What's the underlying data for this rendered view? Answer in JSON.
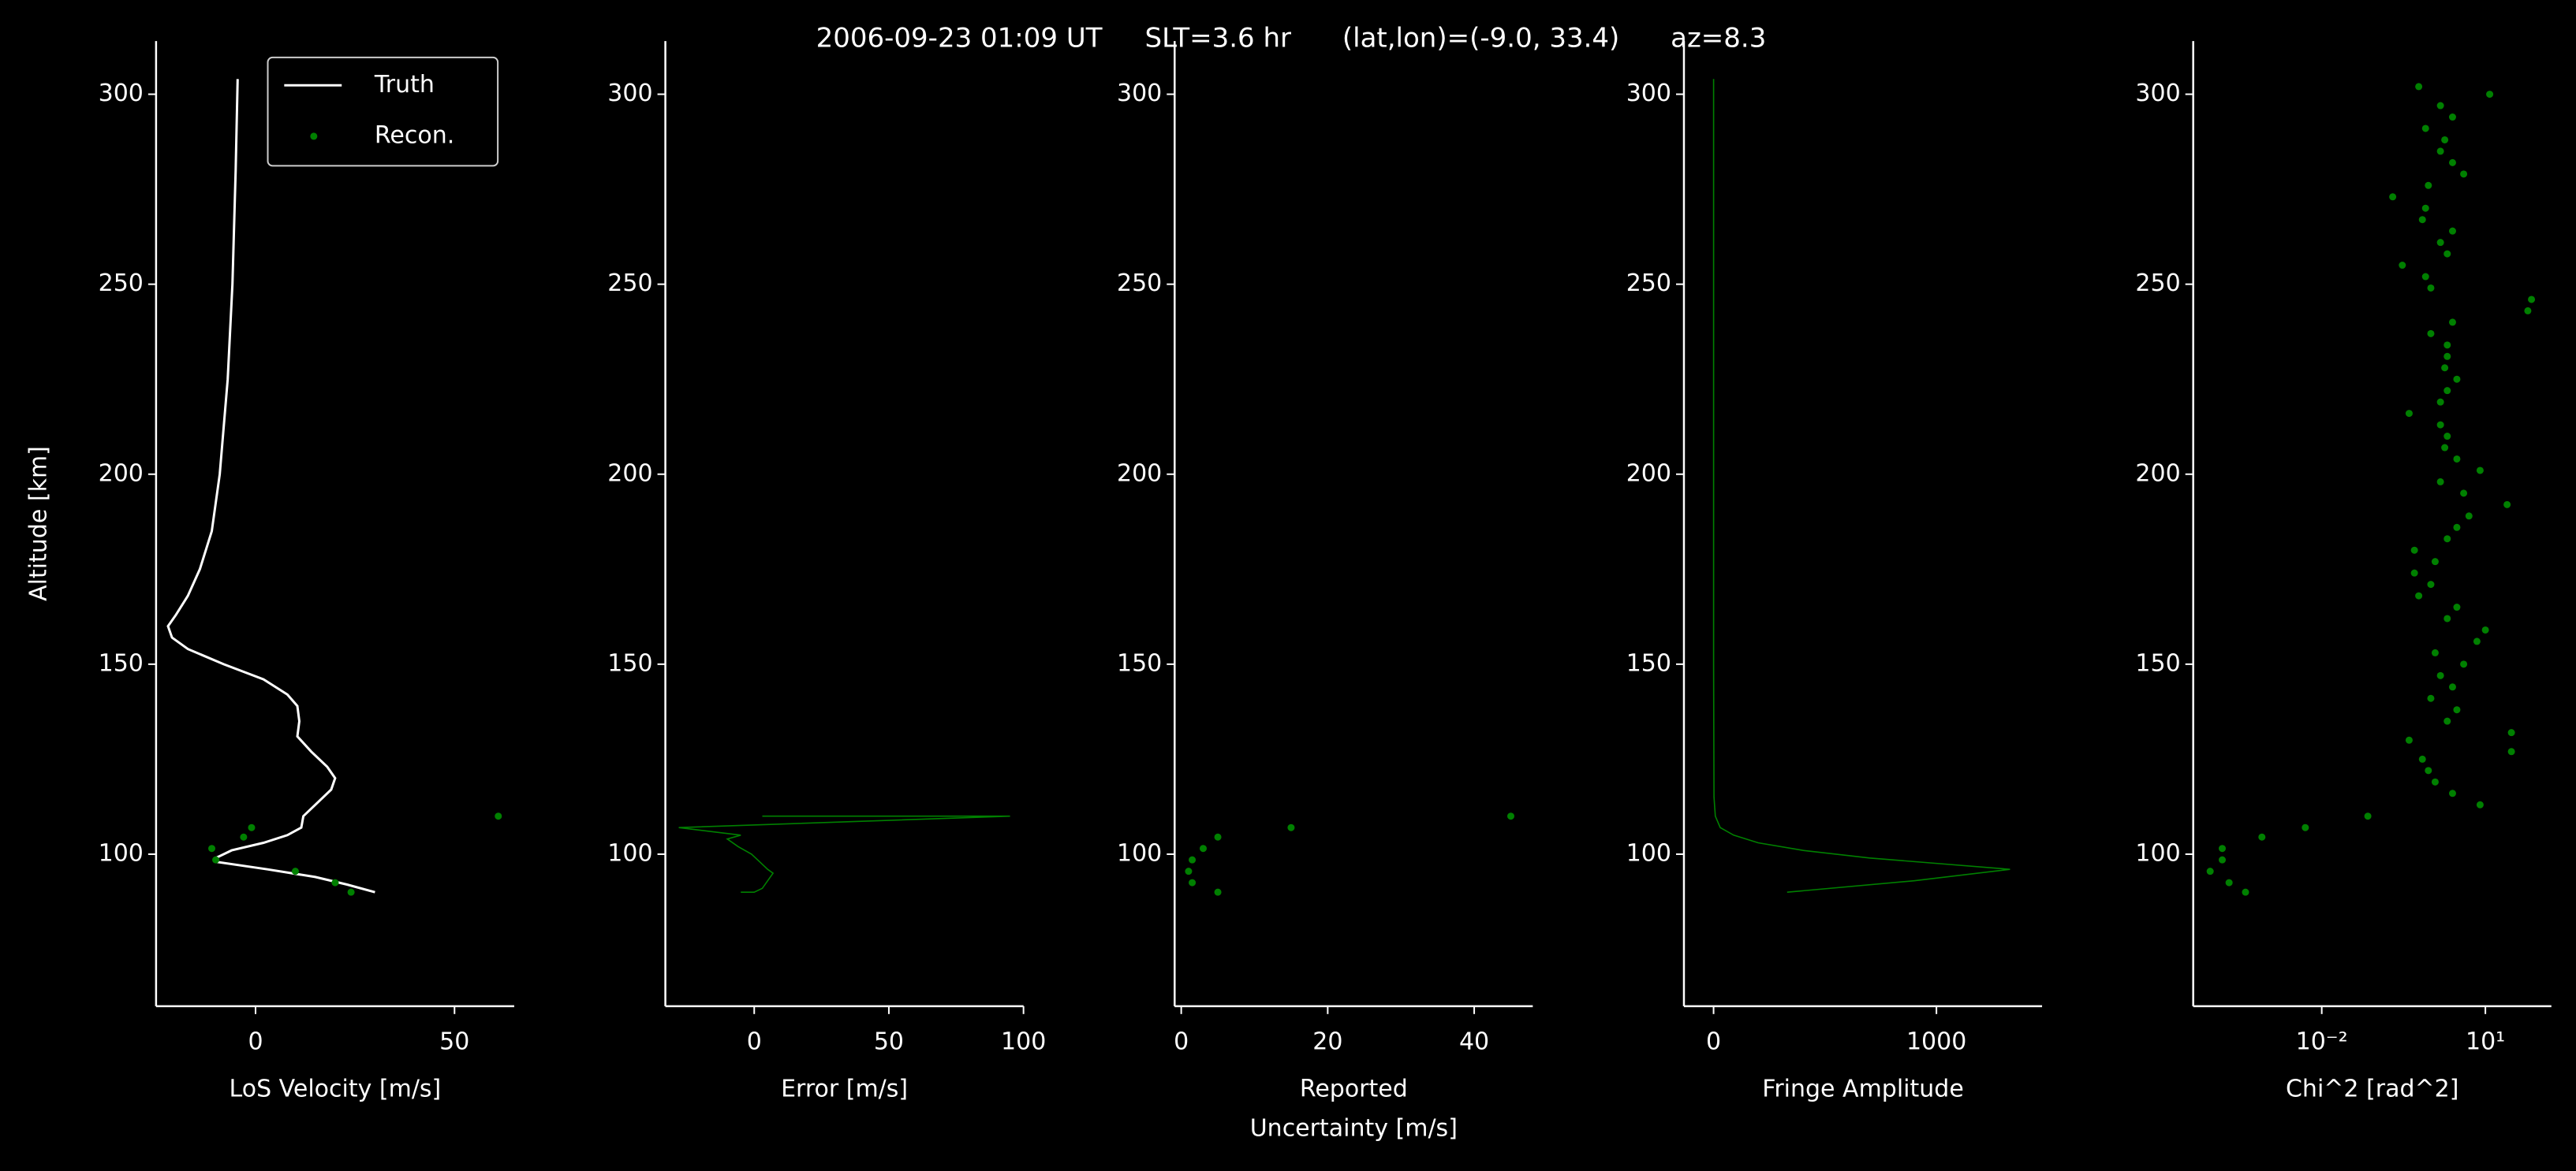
{
  "title": "2006-09-23 01:09 UT     SLT=3.6 hr      (lat,lon)=(-9.0, 33.4)      az=8.3",
  "chart_data": [
    {
      "type": "line",
      "xlabel": "LoS Velocity [m/s]",
      "ylabel": "Altitude [km]",
      "legend": "upper right",
      "xlim": [
        -25,
        65
      ],
      "ylim": [
        60,
        314
      ],
      "xticks": [
        0,
        50
      ],
      "yticks": [
        100,
        150,
        200,
        250,
        300
      ],
      "series": [
        {
          "name": "Truth",
          "type": "line",
          "color": "#ffffff",
          "x": [
            -4.5,
            -5,
            -5.8,
            -7,
            -9,
            -11,
            -14,
            -17,
            -20,
            -22,
            -21,
            -17,
            -8,
            2,
            8,
            10.5,
            11,
            10.5,
            14,
            18,
            20,
            19,
            15,
            12,
            11.5,
            8,
            2,
            -6,
            -10,
            -10,
            3,
            15,
            23,
            30
          ],
          "y": [
            304,
            280,
            250,
            225,
            200,
            185,
            175,
            168,
            163,
            160,
            157,
            154,
            150,
            146,
            142,
            139,
            135,
            131,
            127,
            123,
            120,
            117,
            113,
            110,
            107,
            105,
            103,
            101,
            99,
            98,
            96,
            94,
            92,
            90
          ]
        },
        {
          "name": "Recon.",
          "type": "scatter",
          "color": "#008000",
          "x": [
            24,
            20,
            10,
            -10,
            -11,
            -3,
            -1,
            61
          ],
          "y": [
            90,
            92.5,
            95.5,
            98.5,
            101.5,
            104.5,
            107,
            110
          ]
        }
      ]
    },
    {
      "type": "line",
      "xlabel": "Error [m/s]",
      "xlim": [
        -33,
        100
      ],
      "ylim": [
        60,
        314
      ],
      "xticks": [
        0,
        50,
        100
      ],
      "yticks": [
        100,
        150,
        200,
        250,
        300
      ],
      "series": [
        {
          "type": "line",
          "color": "#008000",
          "x": [
            -5,
            0,
            3,
            5,
            7,
            5,
            2,
            -1,
            -6,
            -10,
            -5,
            -28,
            95,
            3
          ],
          "y": [
            90,
            90,
            91,
            93,
            95,
            96,
            98,
            100,
            102,
            104,
            105,
            107,
            110,
            110
          ]
        }
      ]
    },
    {
      "type": "line",
      "xlabel": [
        "Reported",
        "Uncertainty [m/s]"
      ],
      "xlim": [
        -0.9,
        48
      ],
      "ylim": [
        60,
        314
      ],
      "xticks": [
        0,
        20,
        40
      ],
      "yticks": [
        100,
        150,
        200,
        250,
        300
      ],
      "series": [
        {
          "type": "scatter",
          "color": "#008000",
          "x": [
            5,
            1.5,
            1,
            1.5,
            3,
            5,
            15,
            45
          ],
          "y": [
            90,
            92.5,
            95.5,
            98.5,
            101.5,
            104.5,
            107,
            110
          ]
        }
      ]
    },
    {
      "type": "line",
      "xlabel": "Fringe Amplitude",
      "xlim": [
        -133,
        1474
      ],
      "ylim": [
        60,
        314
      ],
      "xticks": [
        0,
        1000
      ],
      "yticks": [
        100,
        150,
        200,
        250,
        300
      ],
      "series": [
        {
          "type": "line",
          "color": "#008000",
          "x": [
            330,
            900,
            1330,
            700,
            400,
            200,
            90,
            30,
            8,
            2,
            0,
            0,
            0,
            0
          ],
          "y": [
            90,
            93,
            96,
            99,
            101,
            103,
            105,
            107,
            110,
            115,
            150,
            200,
            250,
            304
          ]
        }
      ]
    },
    {
      "type": "line",
      "xlabel": "Chi^2 [rad^2]",
      "xscale": "log",
      "xlim": [
        4.4e-05,
        162
      ],
      "ylim": [
        60,
        314
      ],
      "xticks": [
        {
          "value": 0.01,
          "label": "10⁻²"
        },
        {
          "value": 10,
          "label": "10¹"
        }
      ],
      "yticks": [
        100,
        150,
        200,
        250,
        300
      ],
      "series": [
        {
          "type": "scatter",
          "color": "#008000",
          "x": [
            0.0004,
            0.0002,
            9e-05,
            0.00015,
            0.00015,
            0.0008,
            0.005,
            0.07,
            8,
            2.5,
            1.2,
            0.9,
            0.7,
            30,
            0.4,
            30,
            2,
            3,
            1,
            2.5,
            1.5,
            4,
            1.2,
            7,
            10,
            2,
            3,
            0.6,
            1,
            0.5,
            1.2,
            0.5,
            2,
            3,
            5,
            25,
            4,
            1.5,
            8,
            3,
            1.8,
            2,
            1.5,
            0.4,
            1.5,
            2,
            3,
            1.8,
            2,
            2,
            1,
            2.5,
            60,
            70,
            1,
            0.8,
            0.3,
            2,
            1.5,
            2.5,
            0.7,
            0.8,
            0.2,
            0.9,
            4,
            2.5,
            1.5,
            1.8,
            0.8,
            2.5,
            1.5,
            12,
            0.6
          ],
          "y": [
            90,
            92.5,
            95.5,
            98.5,
            101.5,
            104.5,
            107,
            110,
            113,
            116,
            119,
            122,
            125,
            127,
            130,
            132,
            135,
            138,
            141,
            144,
            147,
            150,
            153,
            156,
            159,
            162,
            165,
            168,
            171,
            174,
            177,
            180,
            183,
            186,
            189,
            192,
            195,
            198,
            201,
            204,
            207,
            210,
            213,
            216,
            219,
            222,
            225,
            228,
            231,
            234,
            237,
            240,
            243,
            246,
            249,
            252,
            255,
            258,
            261,
            264,
            267,
            270,
            273,
            276,
            279,
            282,
            285,
            288,
            291,
            294,
            297,
            300,
            302
          ]
        }
      ]
    }
  ]
}
